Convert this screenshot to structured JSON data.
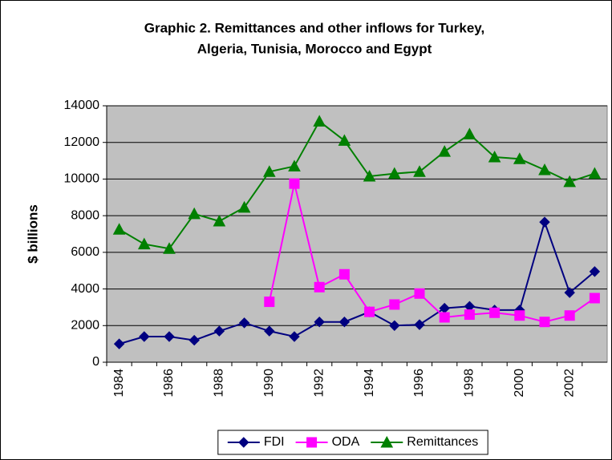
{
  "chart_data": {
    "type": "line",
    "title": [
      "Graphic 2. Remittances and other inflows for Turkey,",
      "Algeria, Tunisia, Morocco and Egypt"
    ],
    "y_label": "$ billions",
    "categories": [
      "1984",
      null,
      "1986",
      null,
      "1988",
      null,
      "1990",
      null,
      "1992",
      null,
      "1994",
      null,
      "1996",
      null,
      "1998",
      null,
      "2000",
      null,
      "2002",
      null
    ],
    "series": [
      {
        "name": "FDI",
        "color": "#000080",
        "marker": "diamond",
        "values": [
          1000,
          1400,
          1400,
          1200,
          1700,
          2150,
          1700,
          1400,
          2200,
          2200,
          2750,
          2000,
          2050,
          2950,
          3050,
          2850,
          2850,
          7650,
          3800,
          4950
        ]
      },
      {
        "name": "ODA",
        "color": "#ff00ff",
        "marker": "square",
        "values": [
          null,
          null,
          null,
          null,
          null,
          null,
          3300,
          9750,
          4100,
          4800,
          2750,
          3150,
          3750,
          2450,
          2600,
          2700,
          2550,
          2200,
          2550,
          3500
        ]
      },
      {
        "name": "Remittances",
        "color": "#008000",
        "marker": "triangle",
        "values": [
          7250,
          6450,
          6200,
          8100,
          7700,
          8450,
          10400,
          10700,
          13150,
          12100,
          10150,
          10300,
          10400,
          11500,
          12450,
          11200,
          11100,
          10500,
          9850,
          10300
        ]
      }
    ],
    "ylim": [
      0,
      14000
    ],
    "yticks": [
      0,
      2000,
      4000,
      6000,
      8000,
      10000,
      12000,
      14000
    ],
    "grid": true,
    "legend": "bottom",
    "plot_background": "#c0c0c0"
  }
}
